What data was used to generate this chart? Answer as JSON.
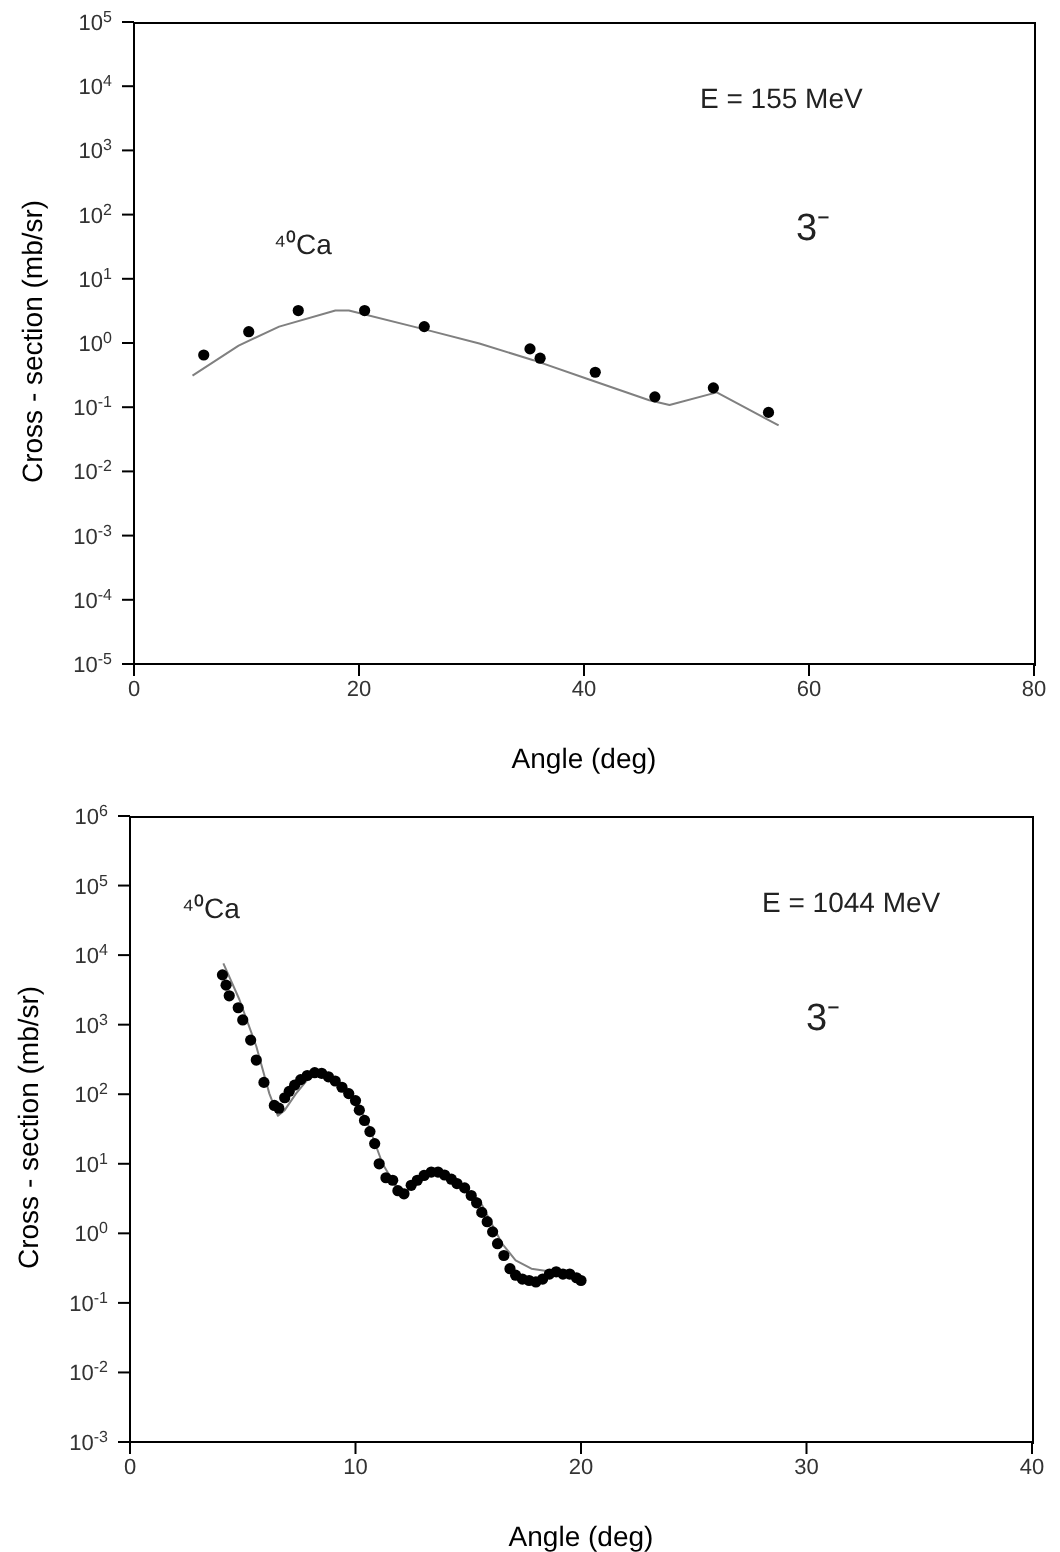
{
  "chart_data": [
    {
      "type": "scatter",
      "xlabel": "Angle (deg)",
      "ylabel": "Cross - section  (mb/sr)",
      "annotations": [
        "E = 155 MeV",
        "3⁻",
        "⁴⁰Ca"
      ],
      "log": "y",
      "grid": false,
      "legend": false,
      "marker": "circle",
      "xlim": [
        0,
        80
      ],
      "xticks": [
        0,
        20,
        40,
        60,
        80
      ],
      "ylim": [
        1e-05,
        100000
      ],
      "yticks": [
        {
          "value": 1e-05,
          "label": "10$^{-5}$"
        },
        {
          "value": 0.0001,
          "label": "10$^{-4}$"
        },
        {
          "value": 0.001,
          "label": "10$^{-3}$"
        },
        {
          "value": 0.01,
          "label": "10$^{-2}$"
        },
        {
          "value": 0.1,
          "label": "10$^{-1}$"
        },
        {
          "value": 1,
          "label": "10$^{0}$"
        },
        {
          "value": 10,
          "label": "10$^{1}$"
        },
        {
          "value": 100,
          "label": "10$^{2}$"
        },
        {
          "value": 1000,
          "label": "10$^{3}$"
        },
        {
          "value": 10000,
          "label": "10$^{4}$"
        },
        {
          "value": 100000,
          "label": "10$^{5}$"
        }
      ],
      "series": [
        {
          "color": "#000000",
          "x": [
            6.2,
            10.2,
            14.6,
            20.5,
            25.8,
            35.2,
            36.1,
            41.0,
            46.3,
            51.5,
            56.4
          ],
          "values": [
            0.65,
            1.5,
            3.2,
            3.2,
            1.8,
            0.81,
            0.58,
            0.35,
            0.145,
            0.2,
            0.083
          ]
        },
        {
          "type": "line",
          "color": "#808080",
          "marker": "none",
          "line_style": "solid",
          "x": [
            5.2,
            9.3,
            12.9,
            17.9,
            19.1,
            26,
            30.7,
            35.5,
            40.2,
            45.8,
            47.6,
            51.8,
            57.3
          ],
          "values": [
            0.31,
            0.91,
            1.8,
            3.2,
            3.2,
            1.6,
            0.98,
            0.54,
            0.28,
            0.128,
            0.108,
            0.17,
            0.052
          ]
        }
      ]
    },
    {
      "type": "scatter",
      "xlabel": "Angle (deg)",
      "ylabel": "Cross - section  (mb/sr)",
      "annotations": [
        "E = 1044 MeV",
        "3⁻",
        "⁴⁰Ca"
      ],
      "log": "y",
      "grid": false,
      "legend": false,
      "marker": "circle",
      "xlim": [
        0,
        40
      ],
      "xticks": [
        0,
        10,
        20,
        30,
        40
      ],
      "ylim": [
        0.001,
        1000000
      ],
      "yticks": [
        {
          "value": 0.001,
          "label": "10$^{-3}$"
        },
        {
          "value": 0.01,
          "label": "10$^{-2}$"
        },
        {
          "value": 0.1,
          "label": "10$^{-1}$"
        },
        {
          "value": 1,
          "label": "10$^{0}$"
        },
        {
          "value": 10,
          "label": "10$^{1}$"
        },
        {
          "value": 100,
          "label": "10$^{2}$"
        },
        {
          "value": 1000,
          "label": "10$^{3}$"
        },
        {
          "value": 10000,
          "label": "10$^{4}$"
        },
        {
          "value": 100000,
          "label": "10$^{5}$"
        },
        {
          "value": 1000000,
          "label": "10$^{6}$"
        }
      ],
      "series": [
        {
          "color": "#000000",
          "x": [
            4.1,
            4.26,
            4.4,
            4.8,
            5.0,
            5.35,
            5.6,
            5.94,
            6.4,
            6.6,
            6.86,
            7.06,
            7.3,
            7.57,
            7.86,
            8.19,
            8.5,
            8.8,
            9.1,
            9.4,
            9.7,
            10.0,
            10.17,
            10.4,
            10.64,
            10.85,
            11.05,
            11.35,
            11.65,
            11.88,
            12.15,
            12.47,
            12.74,
            13.04,
            13.36,
            13.66,
            13.95,
            14.25,
            14.5,
            14.84,
            15.13,
            15.37,
            15.6,
            15.84,
            16.08,
            16.3,
            16.58,
            16.85,
            17.1,
            17.4,
            17.7,
            18.0,
            18.3,
            18.6,
            18.9,
            19.2,
            19.5,
            19.8,
            20.0
          ],
          "values": [
            5200,
            3700,
            2600,
            1750,
            1170,
            600,
            310,
            148,
            69,
            63,
            89,
            110,
            135,
            162,
            186,
            204,
            200,
            178,
            155,
            126,
            102,
            81,
            59,
            42,
            29,
            19.5,
            10,
            6.3,
            5.8,
            4.1,
            3.7,
            4.9,
            5.8,
            6.8,
            7.6,
            7.6,
            6.9,
            6.0,
            5.2,
            4.5,
            3.5,
            2.75,
            2.0,
            1.47,
            1.05,
            0.71,
            0.48,
            0.31,
            0.25,
            0.22,
            0.21,
            0.2,
            0.22,
            0.26,
            0.28,
            0.26,
            0.26,
            0.23,
            0.21
          ]
        },
        {
          "type": "line",
          "color": "#808080",
          "marker": "none",
          "line_style": "solid",
          "x": [
            4.14,
            4.85,
            5.6,
            6.18,
            6.56,
            6.86,
            7.36,
            8.1,
            9.0,
            9.87,
            10.6,
            11.2,
            11.8,
            12.24,
            12.8,
            13.6,
            14.6,
            15.5,
            16.5,
            17.1,
            17.8,
            18.7
          ],
          "values": [
            7600,
            2300,
            490,
            102,
            49,
            59,
            102,
            200,
            178,
            102,
            34,
            10,
            4.7,
            3.9,
            5.8,
            7.6,
            5.0,
            3.0,
            0.71,
            0.41,
            0.31,
            0.28
          ]
        }
      ]
    }
  ]
}
